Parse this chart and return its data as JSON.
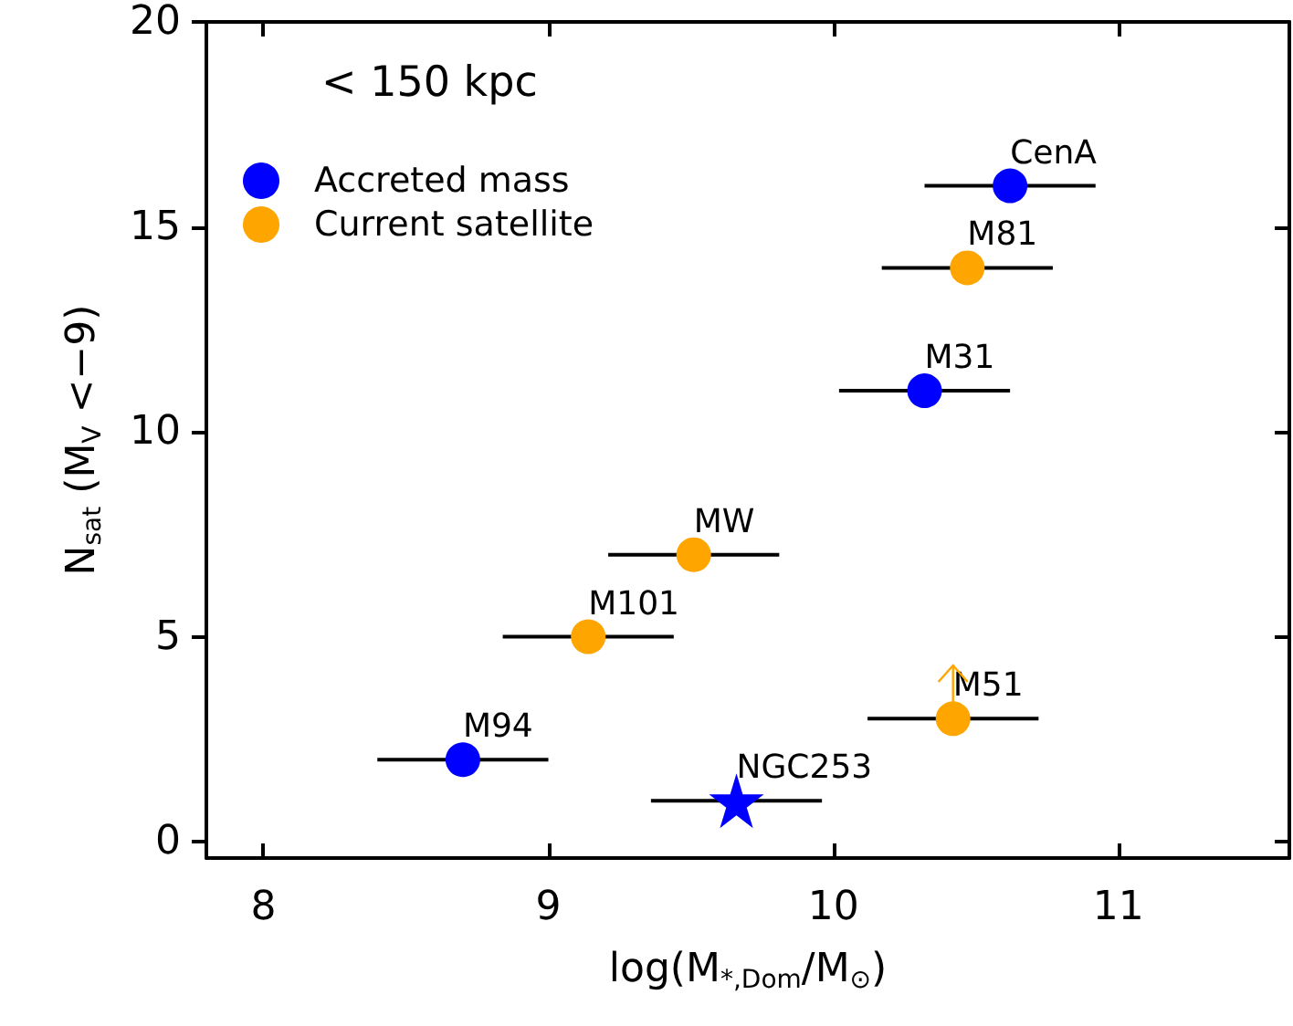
{
  "chart_data": {
    "type": "scatter",
    "xlabel": "log(M$_{*,Dom}$/M$_{⊙}$)",
    "ylabel": "N$_{sat}$ (M$_{V}$ <−9)",
    "xlim": [
      7.8,
      11.6
    ],
    "xticks": [
      8,
      9,
      10,
      11
    ],
    "ylim": [
      -0.4,
      20
    ],
    "yticks": [
      0,
      5,
      10,
      15,
      20
    ],
    "grid": false,
    "legend": "top left",
    "marker": "circle",
    "series": [
      {
        "name": "Accreted mass",
        "color": "#0000ff",
        "x": [
          10.62,
          10.32,
          8.7
        ],
        "values": [
          16,
          11,
          2
        ],
        "xerrors": [
          0.3,
          0.3,
          0.3
        ]
      },
      {
        "name": "Current satellite",
        "color": "#ffa500",
        "x": [
          10.47,
          9.51,
          9.14,
          10.42
        ],
        "values": [
          14,
          7,
          5,
          3
        ],
        "xerrors": [
          0.3,
          0.3,
          0.3,
          0.3
        ],
        "errors": [
          null,
          null,
          null,
          [
            3,
            4.3
          ]
        ]
      },
      {
        "color": "#0000ff",
        "marker": "star",
        "x": [
          9.66
        ],
        "values": [
          1
        ],
        "xerrors": [
          0.3
        ]
      }
    ],
    "annotations": [
      "< 150 kpc",
      {
        "text": "CenA",
        "x": 10.62,
        "y": 16
      },
      {
        "text": "M81",
        "x": 10.47,
        "y": 14
      },
      {
        "text": "M31",
        "x": 10.32,
        "y": 11
      },
      {
        "text": "MW",
        "x": 9.51,
        "y": 7
      },
      {
        "text": "M101",
        "x": 9.14,
        "y": 5
      },
      {
        "text": "M94",
        "x": 8.7,
        "y": 2
      },
      {
        "text": "M51",
        "x": 10.42,
        "y": 3
      },
      {
        "text": "NGC253",
        "x": 9.66,
        "y": 1
      }
    ]
  }
}
